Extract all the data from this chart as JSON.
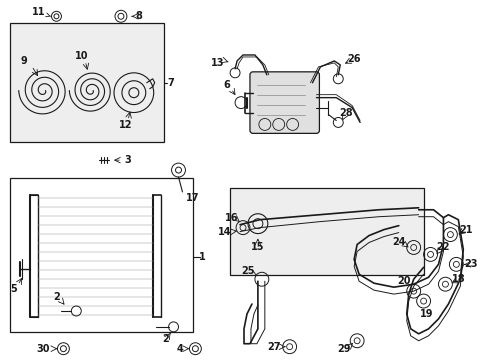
{
  "bg_color": "#ffffff",
  "fig_width": 4.89,
  "fig_height": 3.6,
  "dpi": 100,
  "gray": "#1a1a1a",
  "lightgray": "#888888",
  "boxfill": "#eeeeee"
}
